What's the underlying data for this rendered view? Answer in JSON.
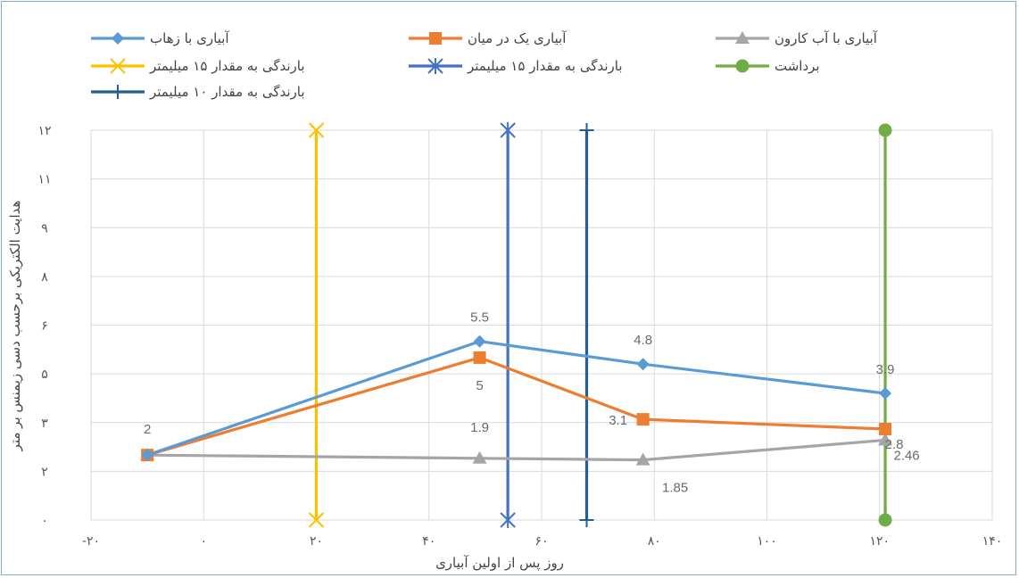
{
  "chart_data": {
    "type": "line",
    "xlabel": "روز پس از اولین آبیاری",
    "ylabel": "هدایت الکتریکی برحسب دسی زیمنس بر متر",
    "xlim": [
      -20,
      140
    ],
    "ylim": [
      0,
      12
    ],
    "x_ticks": [
      {
        "value": -20,
        "label": "-۲۰"
      },
      {
        "value": 0,
        "label": "۰"
      },
      {
        "value": 20,
        "label": "۲۰"
      },
      {
        "value": 40,
        "label": "۴۰"
      },
      {
        "value": 60,
        "label": "۶۰"
      },
      {
        "value": 80,
        "label": "۸۰"
      },
      {
        "value": 100,
        "label": "۱۰۰"
      },
      {
        "value": 120,
        "label": "۱۲۰"
      },
      {
        "value": 140,
        "label": "۱۴۰"
      }
    ],
    "y_ticks": [
      {
        "value": 0,
        "label": "۰"
      },
      {
        "value": 1.5,
        "label": "۲"
      },
      {
        "value": 3,
        "label": "۳"
      },
      {
        "value": 4.5,
        "label": "۵"
      },
      {
        "value": 6,
        "label": "۶"
      },
      {
        "value": 7.5,
        "label": "۸"
      },
      {
        "value": 9,
        "label": "۹"
      },
      {
        "value": 10.5,
        "label": "۱۱"
      },
      {
        "value": 12,
        "label": "۱۲"
      }
    ],
    "grid": true,
    "legend_position": "top",
    "series": [
      {
        "name": "آبیاری با زهاب",
        "color": "#5b9bd5",
        "marker": "diamond",
        "x": [
          -10,
          49,
          78,
          121
        ],
        "y": [
          2,
          5.5,
          4.8,
          3.9
        ],
        "labels": [
          "",
          "5.5",
          "4.8",
          "3.9"
        ]
      },
      {
        "name": "آبیاری یک در میان",
        "color": "#ed7d31",
        "marker": "square",
        "x": [
          -10,
          49,
          78,
          121
        ],
        "y": [
          2,
          5,
          3.1,
          2.8
        ],
        "labels": [
          "2",
          "5",
          "3.1",
          "2.8"
        ]
      },
      {
        "name": "آبیاری با آب کارون",
        "color": "#a5a5a5",
        "marker": "triangle",
        "x": [
          -10,
          49,
          78,
          121
        ],
        "y": [
          2,
          1.9,
          1.85,
          2.46
        ],
        "labels": [
          "",
          "1.9",
          "1.85",
          "2.46"
        ]
      },
      {
        "name": "بارندگی به مقدار ۱۵ میلیمتر",
        "color": "#ffc000",
        "marker": "x",
        "x": [
          20,
          20
        ],
        "y": [
          0,
          12
        ],
        "labels": []
      },
      {
        "name": "بارندگی به مقدار ۱۵ میلیمتر",
        "color": "#4472c4",
        "marker": "star",
        "x": [
          54,
          54
        ],
        "y": [
          0,
          12
        ],
        "labels": []
      },
      {
        "name": "برداشت",
        "color": "#70ad47",
        "marker": "circle",
        "x": [
          121,
          121
        ],
        "y": [
          0,
          12
        ],
        "labels": []
      },
      {
        "name": "بارندگی به مقدار ۱۰ میلیمتر",
        "color": "#255e91",
        "marker": "plus",
        "x": [
          68,
          68
        ],
        "y": [
          0,
          12
        ],
        "labels": []
      }
    ]
  }
}
